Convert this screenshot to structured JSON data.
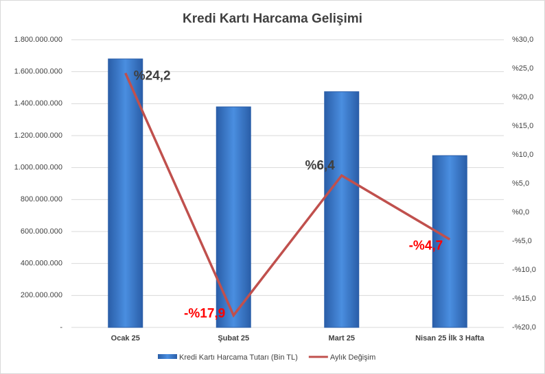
{
  "chart_data": {
    "type": "bar-line",
    "title": "Kredi Kartı Harcama Gelişimi",
    "categories": [
      "Ocak 25",
      "Şubat 25",
      "Mart 25",
      "Nisan 25 İlk 3 Hafta"
    ],
    "series": [
      {
        "name": "Kredi Kartı Harcama Tutarı (Bin TL)",
        "type": "bar",
        "color": "#3a78c9",
        "values": [
          1680000000,
          1380000000,
          1475000000,
          1075000000
        ]
      },
      {
        "name": "Aylık Değişim",
        "type": "line",
        "axis": "y2",
        "color": "#c0504d",
        "values": [
          24.2,
          -17.9,
          6.4,
          -4.7
        ],
        "value_labels": [
          "%24,2",
          "-%17,9",
          "%6,4",
          "-%4,7"
        ]
      }
    ],
    "ylim": [
      0,
      1800000000
    ],
    "yticks": [
      {
        "value": 0,
        "label": "-"
      },
      {
        "value": 200000000,
        "label": "200.000.000"
      },
      {
        "value": 400000000,
        "label": "400.000.000"
      },
      {
        "value": 600000000,
        "label": "600.000.000"
      },
      {
        "value": 800000000,
        "label": "800.000.000"
      },
      {
        "value": 1000000000,
        "label": "1.000.000.000"
      },
      {
        "value": 1200000000,
        "label": "1.200.000.000"
      },
      {
        "value": 1400000000,
        "label": "1.400.000.000"
      },
      {
        "value": 1600000000,
        "label": "1.600.000.000"
      },
      {
        "value": 1800000000,
        "label": "1.800.000.000"
      }
    ],
    "y2lim": [
      -20,
      30
    ],
    "y2ticks": [
      {
        "value": -20,
        "label": "-%20,0"
      },
      {
        "value": -15,
        "label": "-%15,0"
      },
      {
        "value": -10,
        "label": "-%10,0"
      },
      {
        "value": -5,
        "label": "-%5,0"
      },
      {
        "value": 0,
        "label": "%0,0"
      },
      {
        "value": 5,
        "label": "%5,0"
      },
      {
        "value": 10,
        "label": "%10,0"
      },
      {
        "value": 15,
        "label": "%15,0"
      },
      {
        "value": 20,
        "label": "%20,0"
      },
      {
        "value": 25,
        "label": "%25,0"
      },
      {
        "value": 30,
        "label": "%30,0"
      }
    ],
    "grid": true
  }
}
